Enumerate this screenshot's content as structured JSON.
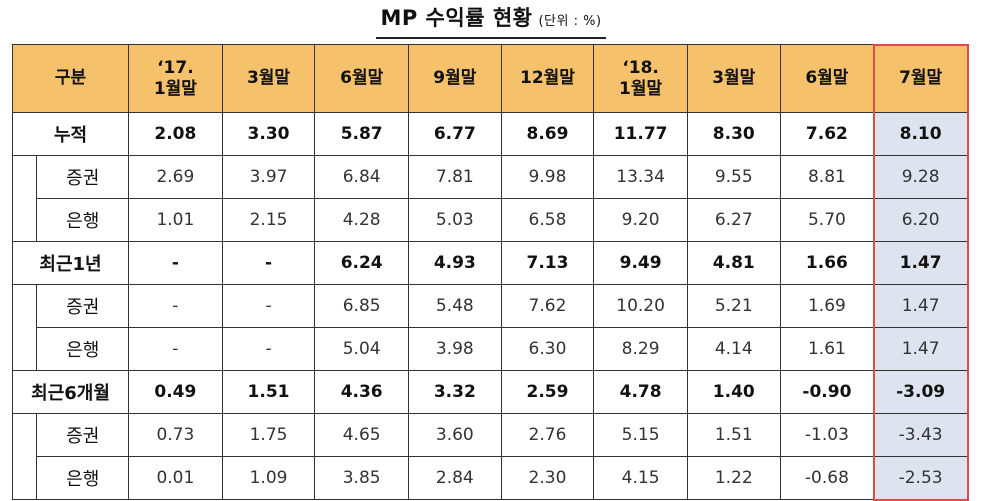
{
  "title": {
    "main": "MP 수익률 현황",
    "unit": "(단위 : %)"
  },
  "colors": {
    "header_bg": "#f5c26b",
    "highlight_bg": "#dde4ef",
    "highlight_border": "#e54848"
  },
  "table": {
    "headers": [
      "구분",
      "‘17. 1월말",
      "3월말",
      "6월말",
      "9월말",
      "12월말",
      "‘18. 1월말",
      "3월말",
      "6월말",
      "7월말"
    ],
    "header_lines": [
      [
        "구분"
      ],
      [
        "‘17.",
        "1월말"
      ],
      [
        "3월말"
      ],
      [
        "6월말"
      ],
      [
        "9월말"
      ],
      [
        "12월말"
      ],
      [
        "‘18.",
        "1월말"
      ],
      [
        "3월말"
      ],
      [
        "6월말"
      ],
      [
        "7월말"
      ]
    ],
    "groups": [
      {
        "label": "누적",
        "values": [
          "2.08",
          "3.30",
          "5.87",
          "6.77",
          "8.69",
          "11.77",
          "8.30",
          "7.62",
          "8.10"
        ],
        "subs": [
          {
            "label": "증권",
            "values": [
              "2.69",
              "3.97",
              "6.84",
              "7.81",
              "9.98",
              "13.34",
              "9.55",
              "8.81",
              "9.28"
            ]
          },
          {
            "label": "은행",
            "values": [
              "1.01",
              "2.15",
              "4.28",
              "5.03",
              "6.58",
              "9.20",
              "6.27",
              "5.70",
              "6.20"
            ]
          }
        ]
      },
      {
        "label": "최근1년",
        "values": [
          "-",
          "-",
          "6.24",
          "4.93",
          "7.13",
          "9.49",
          "4.81",
          "1.66",
          "1.47"
        ],
        "subs": [
          {
            "label": "증권",
            "values": [
              "-",
              "-",
              "6.85",
              "5.48",
              "7.62",
              "10.20",
              "5.21",
              "1.69",
              "1.47"
            ]
          },
          {
            "label": "은행",
            "values": [
              "-",
              "-",
              "5.04",
              "3.98",
              "6.30",
              "8.29",
              "4.14",
              "1.61",
              "1.47"
            ]
          }
        ]
      },
      {
        "label": "최근6개월",
        "values": [
          "0.49",
          "1.51",
          "4.36",
          "3.32",
          "2.59",
          "4.78",
          "1.40",
          "-0.90",
          "-3.09"
        ],
        "subs": [
          {
            "label": "증권",
            "values": [
              "0.73",
              "1.75",
              "4.65",
              "3.60",
              "2.76",
              "5.15",
              "1.51",
              "-1.03",
              "-3.43"
            ]
          },
          {
            "label": "은행",
            "values": [
              "0.01",
              "1.09",
              "3.85",
              "2.84",
              "2.30",
              "4.15",
              "1.22",
              "-0.68",
              "-2.53"
            ]
          }
        ]
      }
    ]
  }
}
